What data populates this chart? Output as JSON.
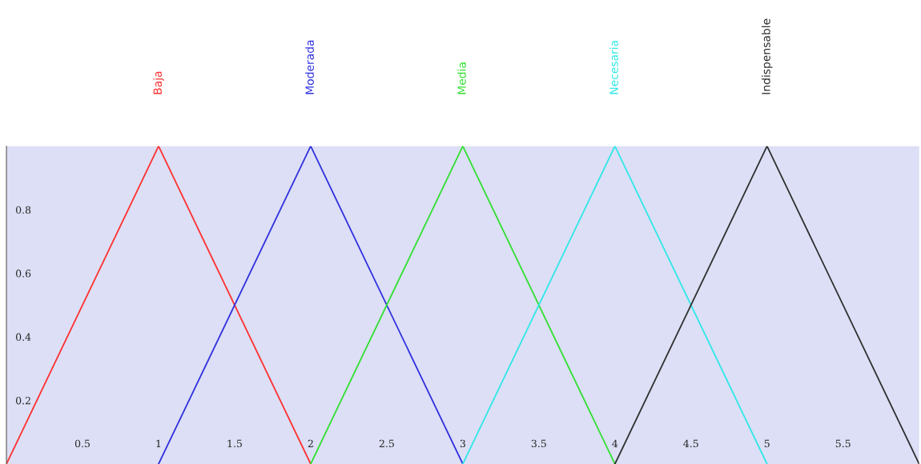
{
  "chart_data": {
    "type": "line",
    "xlim": [
      0,
      6
    ],
    "ylim": [
      0,
      1
    ],
    "xticks": [
      0.5,
      1,
      1.5,
      2,
      2.5,
      3,
      3.5,
      4,
      4.5,
      5,
      5.5
    ],
    "yticks": [
      0.2,
      0.4,
      0.6,
      0.8
    ],
    "grid": false,
    "legend": false,
    "marker": "none",
    "line_style": "solid",
    "series": [
      {
        "name": "Baja",
        "color": "#ff3030",
        "x": [
          0,
          1,
          2
        ],
        "values": [
          0,
          1,
          0
        ]
      },
      {
        "name": "Moderada",
        "color": "#3030e0",
        "x": [
          1,
          2,
          3
        ],
        "values": [
          0,
          1,
          0
        ]
      },
      {
        "name": "Media",
        "color": "#30e030",
        "x": [
          2,
          3,
          4
        ],
        "values": [
          0,
          1,
          0
        ]
      },
      {
        "name": "Necesaria",
        "color": "#30e8e8",
        "x": [
          3,
          4,
          5
        ],
        "values": [
          0,
          1,
          0
        ]
      },
      {
        "name": "Indispensable",
        "color": "#303030",
        "x": [
          4,
          5,
          6
        ],
        "values": [
          0,
          1,
          0
        ]
      }
    ]
  }
}
